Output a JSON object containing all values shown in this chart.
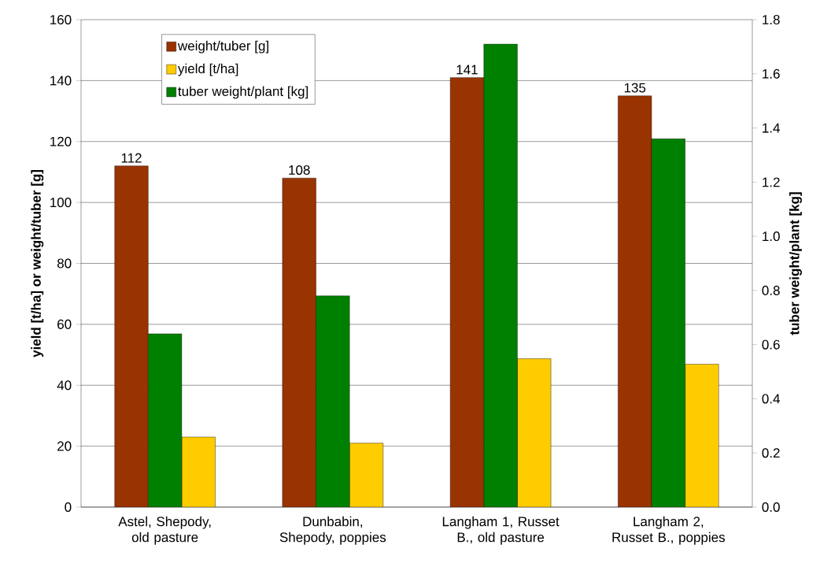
{
  "chart_data": {
    "type": "bar",
    "ylabel": "yield [t/ha] or weight/tuber [g]",
    "y2label": "tuber weight/plant [kg]",
    "categories": [
      "Astel, Shepody, old pasture",
      "Dunbabin, Shepody, poppies",
      "Langham 1, Russet B., old pasture",
      "Langham 2, Russet B., poppies"
    ],
    "series": [
      {
        "name": "weight/tuber [g]",
        "color": "#993300",
        "values": [
          112,
          108,
          141,
          135
        ],
        "value_labels": [
          "112",
          "108",
          "141",
          "135"
        ]
      },
      {
        "name": "tuber weight/plant [kg]",
        "color": "#008000",
        "values": [
          0.64,
          0.78,
          1.71,
          1.36
        ],
        "axis": "y2"
      },
      {
        "name": "yield [t/ha]",
        "color": "#ffcc00",
        "values": [
          23,
          21,
          48.7,
          46.9
        ]
      }
    ],
    "ylim": [
      0,
      160
    ],
    "yticks": [
      0,
      20,
      40,
      60,
      80,
      100,
      120,
      140,
      160
    ],
    "y2lim": [
      0,
      1.8
    ],
    "y2ticks": [
      {
        "value": 0,
        "label": "0.0"
      },
      {
        "value": 0.2,
        "label": "0.2"
      },
      {
        "value": 0.4,
        "label": "0.4"
      },
      {
        "value": 0.6,
        "label": "0.6"
      },
      {
        "value": 0.8,
        "label": "0.8"
      },
      {
        "value": 1.0,
        "label": "1.0"
      },
      {
        "value": 1.2,
        "label": "1.2"
      },
      {
        "value": 1.4,
        "label": "1.4"
      },
      {
        "value": 1.6,
        "label": "1.6"
      },
      {
        "value": 1.8,
        "label": "1.8"
      }
    ],
    "grid": "y",
    "legend": "top left"
  }
}
